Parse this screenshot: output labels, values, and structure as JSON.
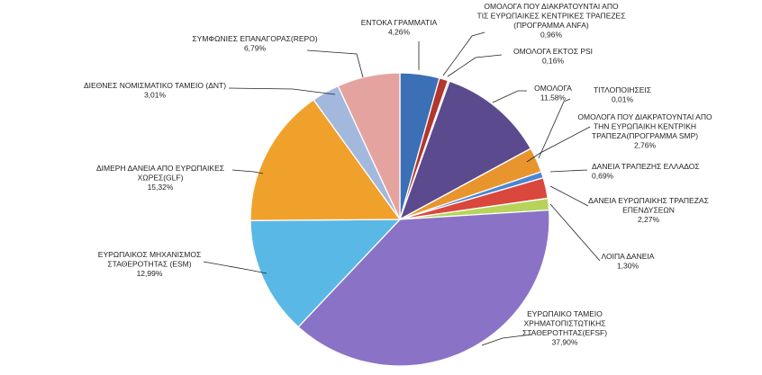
{
  "chart_data": {
    "type": "pie",
    "title": "",
    "slices": [
      {
        "label": [
          "ΕΝΤΟΚΑ ΓΡΑΜΜΑΤΙΑ"
        ],
        "value_text": "4,26%",
        "value": 4.26,
        "color": "#3b6fb6"
      },
      {
        "label": [
          "ΟΜΟΛΟΓΑ ΠΟΥ ΔΙΑΚΡΑΤΟΥΝΤΑΙ ΑΠΟ",
          "ΤΙΣ ΕΥΡΩΠΑΙΚΕΣ ΚΕΝΤΡΙΚΕΣ ΤΡΑΠΕΖΕΣ",
          "(ΠΡΟΓΡΑΜΜΑ ANFA)"
        ],
        "value_text": "0,96%",
        "value": 0.96,
        "color": "#b2362d"
      },
      {
        "label": [
          "ΟΜΟΛΟΓΑ ΕΚΤΟΣ PSI"
        ],
        "value_text": "0,16%",
        "value": 0.16,
        "color": "#7e9a35"
      },
      {
        "label": [
          "ΟΜΟΛΟΓΑ"
        ],
        "value_text": "11,58%",
        "value": 11.58,
        "color": "#5b4a8e"
      },
      {
        "label": [
          "ΤΙΤΛΟΠΟΙΗΣΕΙΣ"
        ],
        "value_text": "0,01%",
        "value": 0.01,
        "color": "#2a8ea8"
      },
      {
        "label": [
          "ΟΜΟΛΟΓΑ ΠΟΥ ΔΙΑΚΡΑΤΟΥΝΤΑΙ ΑΠΟ",
          "ΤΗΝ ΕΥΡΩΠΑΙΚΗ ΚΕΝΤΡΙΚΗ",
          "ΤΡΑΠΕΖΑ(ΠΡΟΓΡΑΜΜΑ SMP)"
        ],
        "value_text": "2,76%",
        "value": 2.76,
        "color": "#e8952e"
      },
      {
        "label": [
          "ΔΑΝΕΙΑ ΤΡΑΠΕΖΗΣ ΕΛΛΑΔΟΣ"
        ],
        "value_text": "0,69%",
        "value": 0.69,
        "color": "#4a86d6"
      },
      {
        "label": [
          "ΔΑΝΕΙΑ ΕΥΡΩΠΑΙΚΗΣ ΤΡΑΠΕΖΑΣ",
          "ΕΠΕΝΔΥΣΕΩΝ"
        ],
        "value_text": "2,27%",
        "value": 2.27,
        "color": "#d9473d"
      },
      {
        "label": [
          "ΛΟΙΠΑ ΔΑΝΕΙΑ"
        ],
        "value_text": "1,30%",
        "value": 1.3,
        "color": "#b7d35a"
      },
      {
        "label": [
          "ΕΥΡΩΠΑΙΚΟ ΤΑΜΕΙΟ",
          "ΧΡΗΜΑΤΟΠΙΣΤΩΤΙΚΗΣ",
          "ΣΤΑΘΕΡΟΤΗΤΑΣ(EFSF)"
        ],
        "value_text": "37,90%",
        "value": 37.9,
        "color": "#8a73c6"
      },
      {
        "label": [
          "ΕΥΡΩΠΑΙΚΟΣ ΜΗΧΑΝΙΣΜΟΣ",
          "ΣΤΑΘΕΡΟΤΗΤΑΣ (ESM)"
        ],
        "value_text": "12,99%",
        "value": 12.99,
        "color": "#5ab8e6"
      },
      {
        "label": [
          "ΔΙΜΕΡΗ ΔΑΝΕΙΑ ΑΠΟ ΕΥΡΩΠΑΙΚΕΣ",
          "ΧΩΡΕΣ(GLF)"
        ],
        "value_text": "15,32%",
        "value": 15.32,
        "color": "#f0a12c"
      },
      {
        "label": [
          "ΔΙΕΘΝΕΣ ΝΟΜΙΣΜΑΤΙΚΟ ΤΑΜΕΙΟ (ΔΝΤ)"
        ],
        "value_text": "3,01%",
        "value": 3.01,
        "color": "#a3b8dd"
      },
      {
        "label": [
          "ΣΥΜΦΩΝΙΕΣ ΕΠΑΝΑΓΟΡΑΣ(REPO)"
        ],
        "value_text": "6,79%",
        "value": 6.79,
        "color": "#e5a3a0"
      }
    ]
  }
}
